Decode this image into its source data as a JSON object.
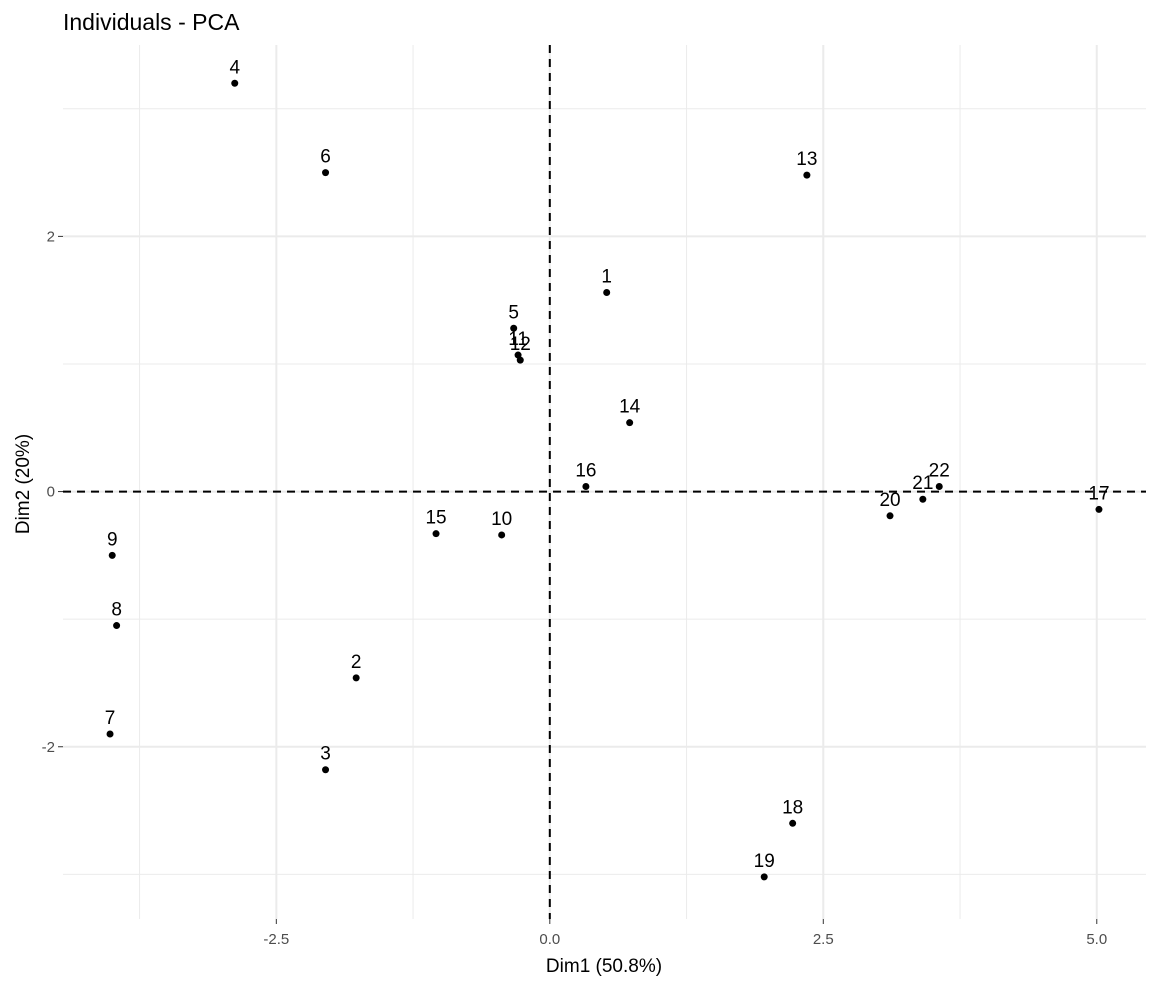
{
  "chart_data": {
    "type": "scatter",
    "title": "Individuals - PCA",
    "xlabel": "Dim1 (50.8%)",
    "ylabel": "Dim2 (20%)",
    "xlim": [
      -4.45,
      5.45
    ],
    "ylim": [
      -3.35,
      3.5
    ],
    "x_ticks": [
      -2.5,
      0.0,
      2.5,
      5.0
    ],
    "x_tick_labels": [
      "-2.5",
      "0.0",
      "2.5",
      "5.0"
    ],
    "y_ticks": [
      -2,
      0,
      2
    ],
    "y_tick_labels": [
      "-2",
      "0",
      "2"
    ],
    "x_minor": [
      -3.75,
      -1.25,
      1.25,
      3.75
    ],
    "y_minor": [
      -3,
      -1,
      1,
      3
    ],
    "grid": true,
    "reference_lines": {
      "x": 0,
      "y": 0,
      "style": "dashed"
    },
    "point_color": "#000000",
    "grid_color": "#ebebeb",
    "points": [
      {
        "label": "1",
        "x": 0.52,
        "y": 1.56
      },
      {
        "label": "2",
        "x": -1.77,
        "y": -1.46
      },
      {
        "label": "3",
        "x": -2.05,
        "y": -2.18
      },
      {
        "label": "4",
        "x": -2.88,
        "y": 3.2
      },
      {
        "label": "5",
        "x": -0.33,
        "y": 1.28
      },
      {
        "label": "6",
        "x": -2.05,
        "y": 2.5
      },
      {
        "label": "7",
        "x": -4.02,
        "y": -1.9
      },
      {
        "label": "8",
        "x": -3.96,
        "y": -1.05
      },
      {
        "label": "9",
        "x": -4.0,
        "y": -0.5
      },
      {
        "label": "10",
        "x": -0.44,
        "y": -0.34
      },
      {
        "label": "11",
        "x": -0.29,
        "y": 1.07
      },
      {
        "label": "12",
        "x": -0.27,
        "y": 1.03
      },
      {
        "label": "13",
        "x": 2.35,
        "y": 2.48
      },
      {
        "label": "14",
        "x": 0.73,
        "y": 0.54
      },
      {
        "label": "15",
        "x": -1.04,
        "y": -0.33
      },
      {
        "label": "16",
        "x": 0.33,
        "y": 0.04
      },
      {
        "label": "17",
        "x": 5.02,
        "y": -0.14
      },
      {
        "label": "18",
        "x": 2.22,
        "y": -2.6
      },
      {
        "label": "19",
        "x": 1.96,
        "y": -3.02
      },
      {
        "label": "20",
        "x": 3.11,
        "y": -0.19
      },
      {
        "label": "21",
        "x": 3.41,
        "y": -0.06
      },
      {
        "label": "22",
        "x": 3.56,
        "y": 0.04
      }
    ]
  }
}
